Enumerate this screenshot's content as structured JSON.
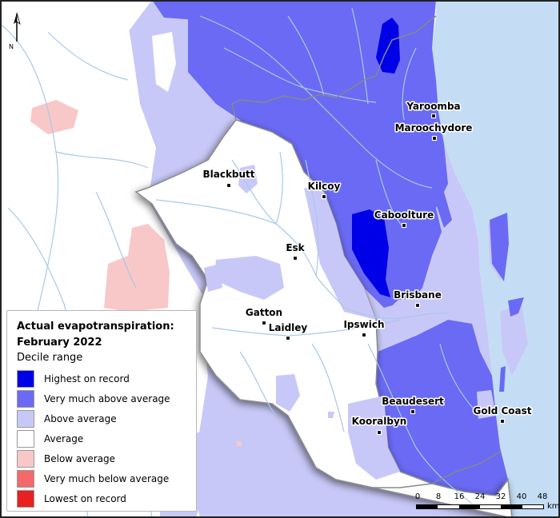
{
  "legend": {
    "title_line1": "Actual evapotranspiration:",
    "title_line2": "February 2022",
    "subtitle": "Decile range",
    "items": [
      {
        "label": "Highest on record",
        "color": "#0000e8"
      },
      {
        "label": "Very much above average",
        "color": "#6a6af4"
      },
      {
        "label": "Above average",
        "color": "#c8c8f8"
      },
      {
        "label": "Average",
        "color": "#ffffff"
      },
      {
        "label": "Below average",
        "color": "#f8c8c8"
      },
      {
        "label": "Very much below average",
        "color": "#f46a6a"
      },
      {
        "label": "Lowest on record",
        "color": "#e82020"
      }
    ]
  },
  "towns": [
    {
      "name": "Yaroomba"
    },
    {
      "name": "Maroochydore"
    },
    {
      "name": "Blackbutt"
    },
    {
      "name": "Kilcoy"
    },
    {
      "name": "Caboolture"
    },
    {
      "name": "Esk"
    },
    {
      "name": "Brisbane"
    },
    {
      "name": "Gatton"
    },
    {
      "name": "Laidley"
    },
    {
      "name": "Ipswich"
    },
    {
      "name": "Beaudesert"
    },
    {
      "name": "Gold Coast"
    },
    {
      "name": "Kooralbyn"
    }
  ],
  "scale": {
    "ticks": [
      "0",
      "8",
      "16",
      "24",
      "32",
      "40",
      "48"
    ],
    "unit": "km"
  },
  "north_label": "N",
  "colors": {
    "ocean": "#c4ddf4",
    "river": "#a8c8e8",
    "boundary": "#888888"
  }
}
